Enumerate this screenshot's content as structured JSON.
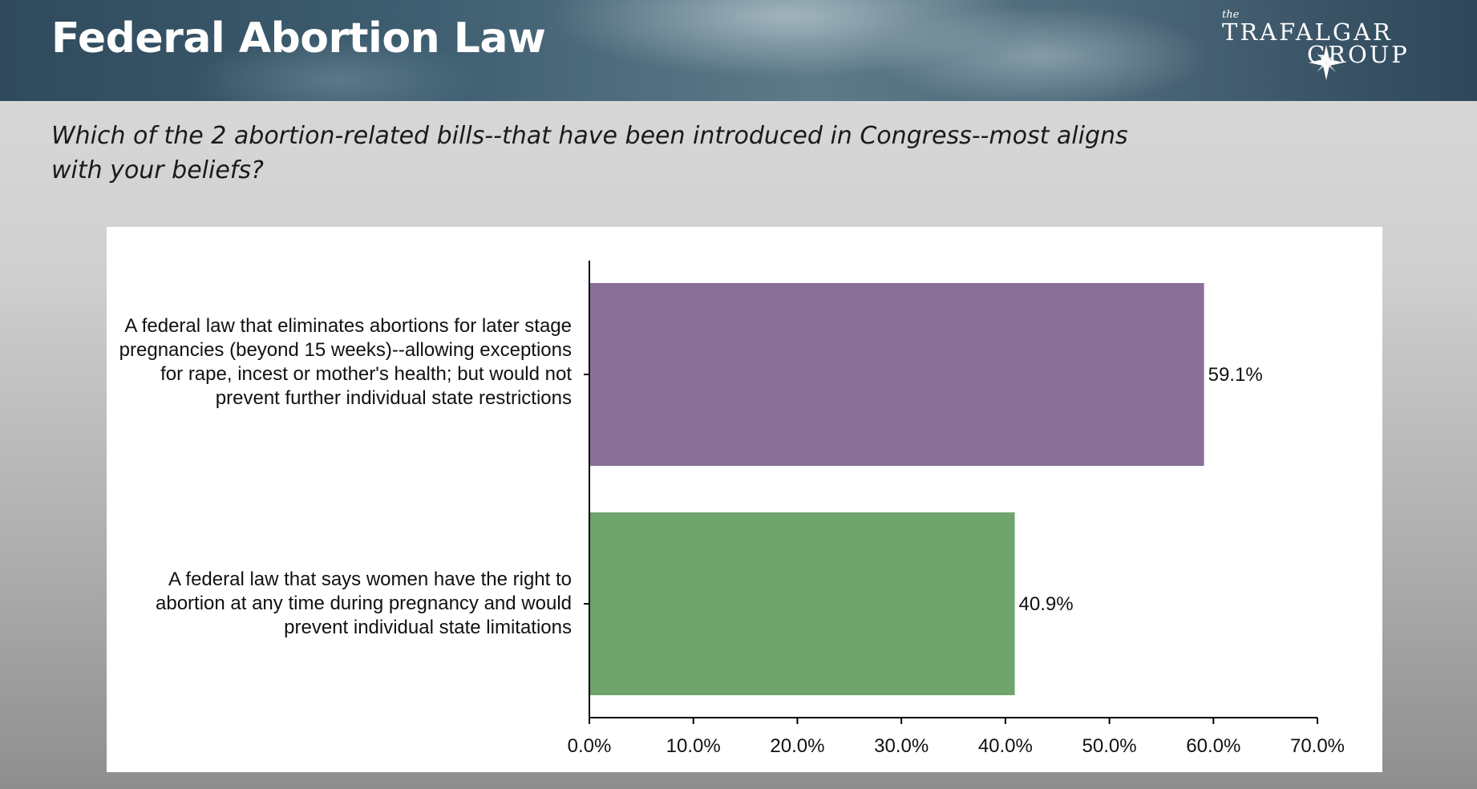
{
  "page": {
    "title": "Federal Abortion Law",
    "question": "Which of the 2 abortion-related bills--that have been introduced in Congress--most aligns with your beliefs?",
    "logo": {
      "small": "the",
      "line1": "TRAFALGAR",
      "line2": "GROUP"
    }
  },
  "chart_data": {
    "type": "bar",
    "orientation": "horizontal",
    "categories": [
      "A federal law that eliminates abortions for later stage pregnancies (beyond 15 weeks)--allowing exceptions for rape, incest or mother's health; but would not prevent further individual state restrictions",
      "A federal law that says women have the right to abortion at any time during pregnancy and would prevent individual state limitations"
    ],
    "values": [
      59.1,
      40.9
    ],
    "data_labels": [
      "59.1%",
      "40.9%"
    ],
    "colors": [
      "#8a7099",
      "#6fa46c"
    ],
    "xlim": [
      0,
      70
    ],
    "xticks": [
      "0.0%",
      "10.0%",
      "20.0%",
      "30.0%",
      "40.0%",
      "50.0%",
      "60.0%",
      "70.0%"
    ],
    "grid": false,
    "title": "",
    "xlabel": "",
    "ylabel": ""
  }
}
